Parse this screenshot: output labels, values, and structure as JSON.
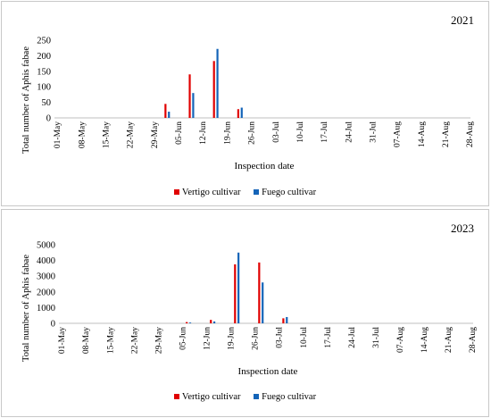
{
  "colors": {
    "vertigo": "#e00000",
    "fuego": "#1464b8"
  },
  "chart_data": [
    {
      "type": "bar",
      "title": "2021",
      "xlabel": "Inspection date",
      "ylabel": "Total number of Aphis fabae",
      "ylim": [
        0,
        250
      ],
      "yticks": [
        "0",
        "50",
        "100",
        "150",
        "200",
        "250"
      ],
      "x_ticks": [
        "01-May",
        "08-May",
        "15-May",
        "22-May",
        "29-May",
        "05-Jun",
        "12-Jun",
        "19-Jun",
        "26-Jun",
        "03-Jul",
        "10-Jul",
        "17-Jul",
        "24-Jul",
        "31-Jul",
        "07-Aug",
        "14-Aug",
        "21-Aug",
        "28-Aug"
      ],
      "x_start": "01-May",
      "x_end": "28-Aug",
      "grid": false,
      "legend": "bottom",
      "series": [
        {
          "name": "Vertigo cultivar",
          "x": [
            "01-Jun",
            "08-Jun",
            "15-Jun",
            "22-Jun"
          ],
          "y": [
            45,
            140,
            183,
            28
          ]
        },
        {
          "name": "Fuego cultivar",
          "x": [
            "02-Jun",
            "09-Jun",
            "16-Jun",
            "23-Jun"
          ],
          "y": [
            20,
            80,
            222,
            33
          ]
        }
      ]
    },
    {
      "type": "bar",
      "title": "2023",
      "xlabel": "Inspection date",
      "ylabel": "Total number of Aphis fabae",
      "ylim": [
        0,
        5000
      ],
      "yticks": [
        "0",
        "1000",
        "2000",
        "3000",
        "4000",
        "5000"
      ],
      "x_ticks": [
        "01-May",
        "08-May",
        "15-May",
        "22-May",
        "29-May",
        "05-Jun",
        "12-Jun",
        "19-Jun",
        "26-Jun",
        "03-Jul",
        "10-Jul",
        "17-Jul",
        "24-Jul",
        "31-Jul",
        "07-Aug",
        "14-Aug",
        "21-Aug",
        "28-Aug"
      ],
      "x_start": "01-May",
      "x_end": "28-Aug",
      "grid": false,
      "legend": "bottom",
      "series": [
        {
          "name": "Vertigo cultivar",
          "x": [
            "06-Jun",
            "13-Jun",
            "20-Jun",
            "27-Jun",
            "04-Jul"
          ],
          "y": [
            80,
            220,
            3750,
            3870,
            320
          ]
        },
        {
          "name": "Fuego cultivar",
          "x": [
            "07-Jun",
            "14-Jun",
            "21-Jun",
            "28-Jun",
            "05-Jul"
          ],
          "y": [
            50,
            120,
            4500,
            2600,
            400
          ]
        }
      ]
    }
  ]
}
